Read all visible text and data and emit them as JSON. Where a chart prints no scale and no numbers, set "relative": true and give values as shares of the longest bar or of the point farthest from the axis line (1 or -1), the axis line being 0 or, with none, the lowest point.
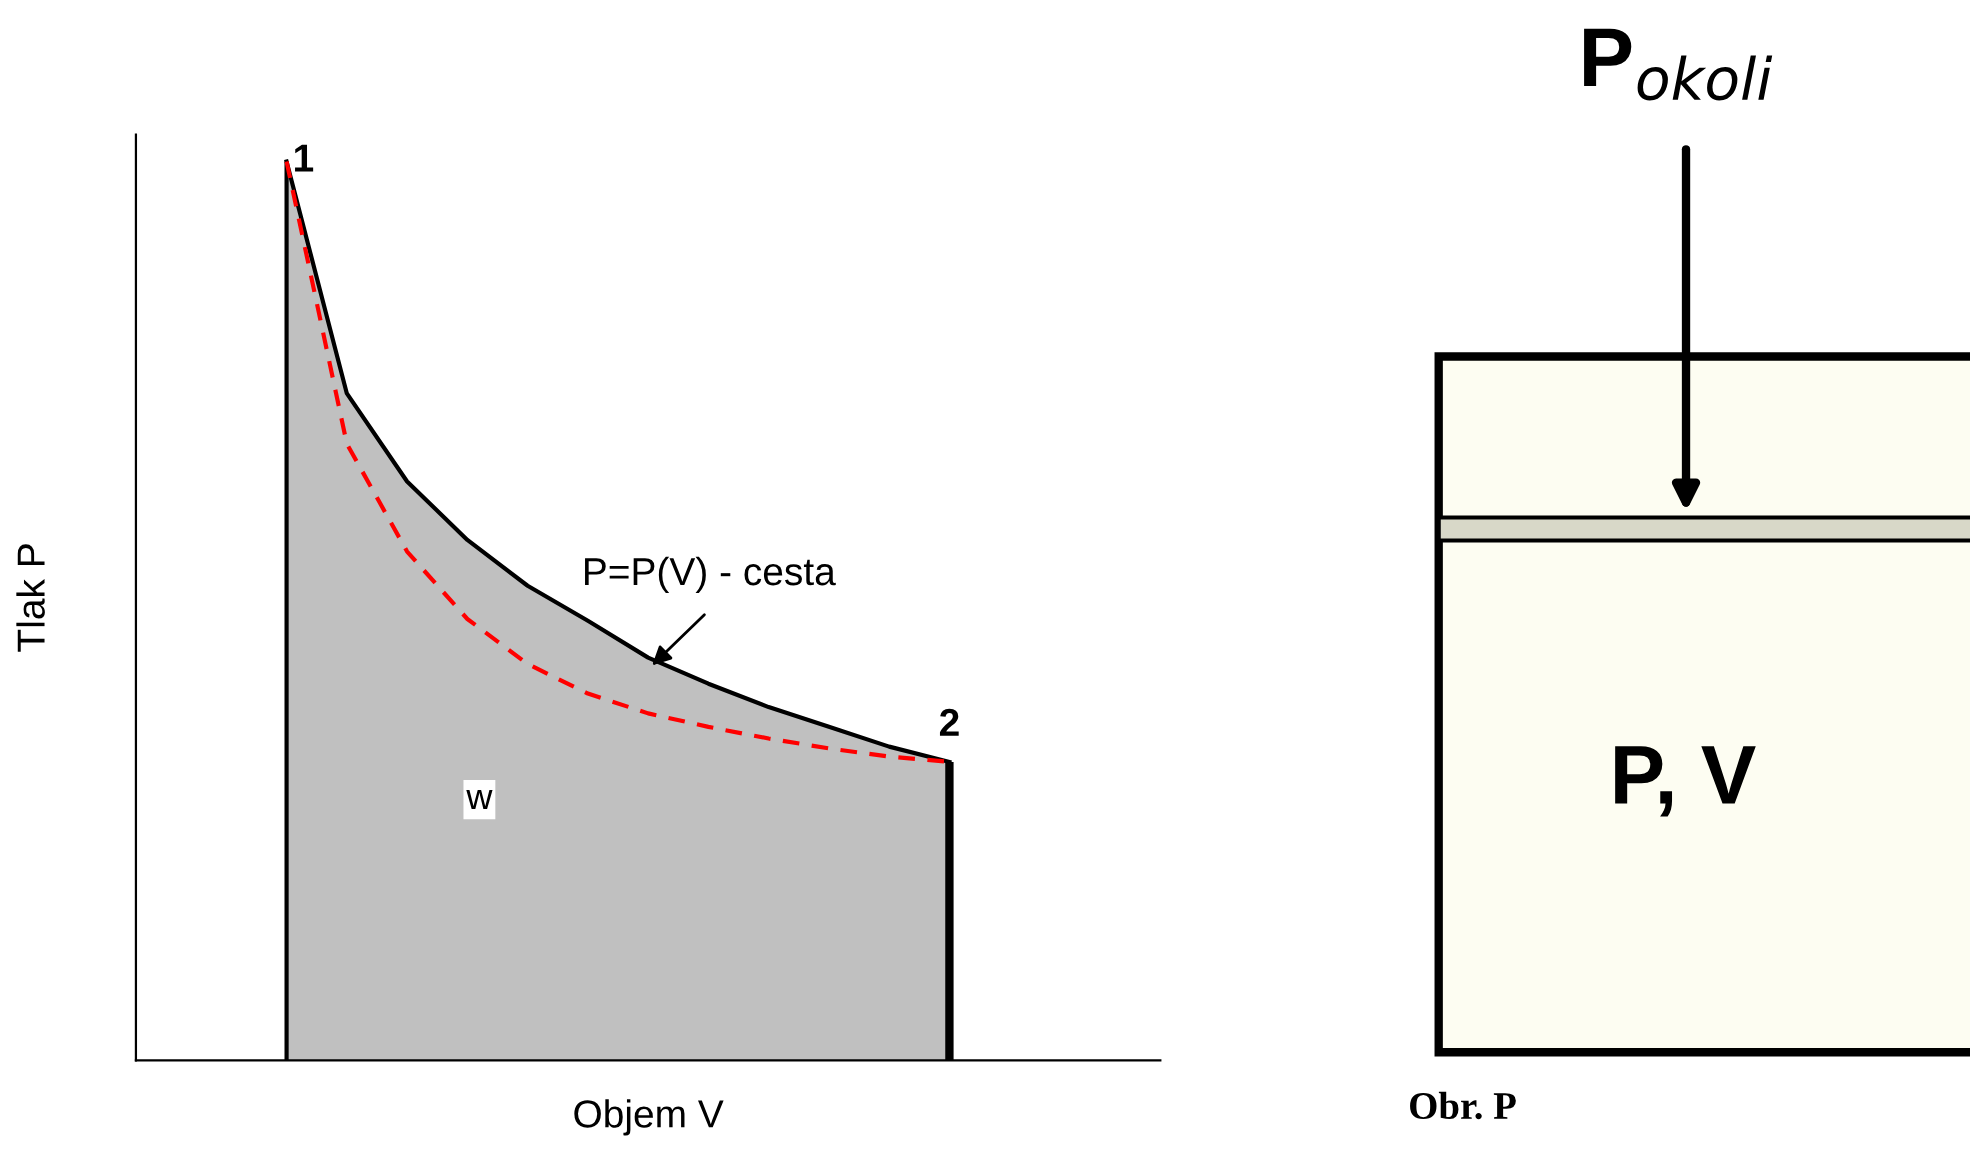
{
  "chart_data": [
    {
      "type": "line",
      "relative": true,
      "xlabel": "Objem V",
      "ylabel": "Tlak P",
      "categories": [
        null,
        null,
        null,
        null,
        null,
        null,
        null,
        null,
        null,
        null,
        null,
        null,
        null,
        null,
        null,
        null,
        null
      ],
      "series": [
        {
          "type": "area",
          "color": "#c0c0c0",
          "values": [
            null,
            null,
            1.0,
            0.742,
            0.644,
            0.579,
            0.528,
            0.489,
            0.448,
            0.419,
            0.393,
            0.371,
            0.349,
            0.332,
            null,
            null,
            null
          ]
        },
        {
          "type": "line",
          "color": "#ff0000",
          "line_style": "dashed",
          "values": [
            null,
            null,
            1.0,
            0.686,
            0.566,
            0.491,
            0.441,
            0.408,
            0.386,
            0.371,
            0.358,
            0.347,
            0.338,
            0.332,
            null,
            null,
            null
          ]
        }
      ],
      "annotations": [
        "1",
        "2",
        "P=P(V) - cesta",
        "w"
      ]
    },
    {
      "type": "other",
      "annotations": [
        "P$_{okoli}$",
        "P, V",
        "Obr. P"
      ]
    }
  ]
}
